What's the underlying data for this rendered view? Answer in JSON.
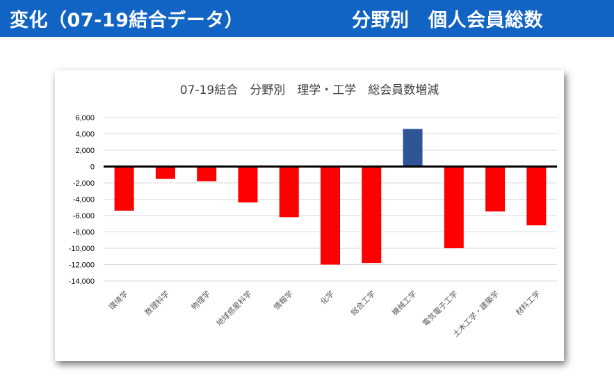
{
  "banner": {
    "left_title": "変化（07-19結合データ）",
    "right_title": "分野別　個人会員総数"
  },
  "colors": {
    "banner_bg": "#1264c4",
    "negative": "#ff0000",
    "positive": "#2f5597",
    "axis": "#000000",
    "grid": "#d9d9d9"
  },
  "chart_data": {
    "type": "bar",
    "title": "07-19結合　分野別　理学・工学　総会員数増減",
    "xlabel": "",
    "ylabel": "",
    "ylim": [
      -14000,
      6000
    ],
    "yticks": [
      6000,
      4000,
      2000,
      0,
      -2000,
      -4000,
      -6000,
      -8000,
      -10000,
      -12000,
      -14000
    ],
    "ytick_labels": [
      "6,000",
      "4,000",
      "2,000",
      "0",
      "-2,000",
      "-4,000",
      "-6,000",
      "-8,000",
      "-10,000",
      "-12,000",
      "-14,000"
    ],
    "grid": true,
    "legend": "none",
    "categories": [
      "環境学",
      "数理科学",
      "物理学",
      "地球惑星科学",
      "情報学",
      "化学",
      "総合工学",
      "機械工学",
      "電気電子工学",
      "土木工学・建築学",
      "材料工学"
    ],
    "values": [
      -5400,
      -1500,
      -1800,
      -4400,
      -6200,
      -12000,
      -11800,
      4600,
      -10000,
      -5500,
      -7200
    ]
  }
}
